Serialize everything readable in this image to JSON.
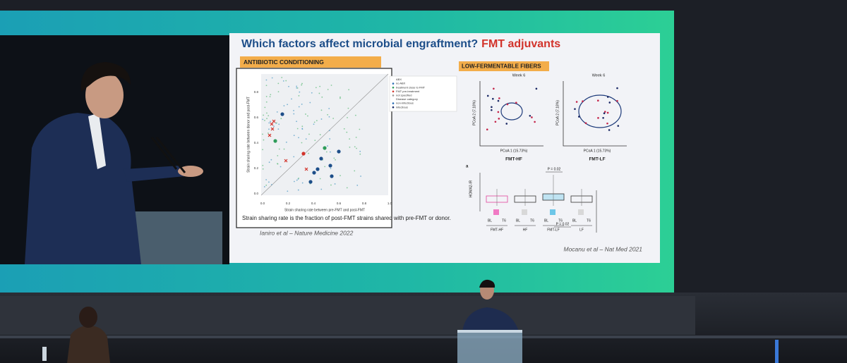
{
  "slide": {
    "title": "Which factors affect microbial engraftment?",
    "title_highlight": "FMT adjuvants",
    "left_panel": {
      "label": "ANTIBIOTIC CONDITIONING",
      "legend": [
        "ABX",
        "no ABX",
        "treatment close to FMT",
        "FMT pre-treatment",
        "not specified",
        "Disease category",
        "non-infectious",
        "infectious"
      ],
      "x_axis_label": "Strain sharing rate between pre-FMT and post-FMT",
      "y_axis_label": "Strain sharing rate between donor and post-FMT",
      "x_ticks": [
        "0.0",
        "0.2",
        "0.4",
        "0.6",
        "0.8",
        "1.0"
      ],
      "y_ticks": [
        "0.0",
        "0.2",
        "0.4",
        "0.6",
        "0.8"
      ],
      "caption": "Strain sharing rate is the fraction of post-FMT strains shared with pre-FMT or donor.",
      "citation": "Ianiro et al – Nature Medicine 2022"
    },
    "right_panel": {
      "label": "LOW-FERMENTABLE FIBERS",
      "pcoa": [
        {
          "week": "Week 6",
          "x_label": "PCoA 1 (15.73%)",
          "y_label": "PCoA 2 (7.18%)",
          "name": "FMT-HF"
        },
        {
          "week": "Week 6",
          "x_label": "PCoA 1 (15.73%)",
          "y_label": "PCoA 2 (7.18%)",
          "name": "FMT-LF"
        }
      ],
      "panel_letter": "a",
      "box_y_label": "HOMA2-IR",
      "time_labels": [
        "BL",
        "T6"
      ],
      "box_groups": [
        "FMT-HF",
        "HF",
        "FMT-LF",
        "LF"
      ],
      "p_values": [
        "P = 0.02",
        "P = 0.02"
      ],
      "citation": "Mocanu et al – Nat Med 2021"
    }
  }
}
